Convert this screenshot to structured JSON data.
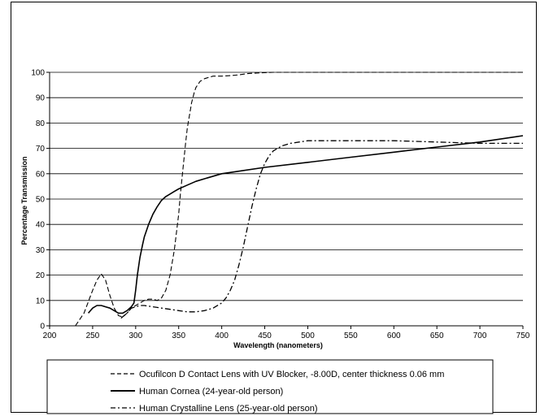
{
  "chart_data": {
    "type": "line",
    "title": "",
    "xlabel": "Wavelength (nanometers)",
    "ylabel": "Percentage Transmission",
    "xlim": [
      200,
      750
    ],
    "ylim": [
      0,
      100
    ],
    "x_ticks": [
      200,
      250,
      300,
      350,
      400,
      450,
      500,
      550,
      600,
      650,
      700,
      750
    ],
    "y_ticks": [
      0,
      10,
      20,
      30,
      40,
      50,
      60,
      70,
      80,
      90,
      100
    ],
    "grid": "horizontal",
    "legend": "bottom",
    "series": [
      {
        "name": "Ocufilcon D Contact Lens with UV Blocker, -8.00D, center thickness 0.06 mm",
        "style": "dashed",
        "x": [
          230,
          240,
          250,
          255,
          260,
          265,
          270,
          275,
          280,
          285,
          290,
          295,
          300,
          305,
          310,
          315,
          320,
          325,
          330,
          335,
          340,
          345,
          350,
          352,
          355,
          358,
          360,
          363,
          365,
          368,
          370,
          373,
          375,
          378,
          380,
          385,
          390,
          395,
          400,
          410,
          420,
          430,
          440,
          460,
          500,
          600,
          700,
          750
        ],
        "y": [
          0,
          5,
          14,
          18,
          20.5,
          18,
          12,
          7,
          4,
          3.5,
          5,
          7,
          8,
          9,
          10,
          10.5,
          10.5,
          10,
          11,
          14,
          20,
          30,
          44,
          52,
          62,
          72,
          78,
          84,
          88,
          92,
          94,
          95.5,
          96.5,
          97,
          97.5,
          98,
          98.5,
          98.5,
          98.5,
          98.7,
          99,
          99.5,
          99.7,
          100,
          100,
          100,
          100,
          100
        ]
      },
      {
        "name": "Human Cornea (24-year-old person)",
        "style": "solid",
        "x": [
          245,
          250,
          255,
          260,
          265,
          270,
          275,
          280,
          285,
          290,
          295,
          298,
          300,
          302,
          305,
          308,
          310,
          315,
          320,
          325,
          330,
          335,
          340,
          345,
          350,
          360,
          370,
          380,
          400,
          420,
          450,
          500,
          550,
          600,
          650,
          700,
          750
        ],
        "y": [
          5,
          7,
          8,
          8,
          7.5,
          7,
          6,
          5,
          5,
          6,
          7.5,
          9,
          14,
          20,
          27,
          32,
          35,
          40,
          44,
          47,
          49.5,
          51,
          52,
          53,
          54,
          55.5,
          57,
          58,
          60,
          61,
          62.5,
          64.5,
          66.5,
          68.5,
          70.5,
          72.5,
          75
        ]
      },
      {
        "name": "Human Crystalline Lens (25-year-old person)",
        "style": "dashdot",
        "x": [
          283,
          290,
          295,
          300,
          305,
          310,
          320,
          330,
          340,
          350,
          360,
          370,
          380,
          390,
          400,
          405,
          410,
          415,
          420,
          425,
          430,
          435,
          440,
          445,
          450,
          455,
          460,
          465,
          470,
          480,
          490,
          500,
          520,
          540,
          560,
          600,
          650,
          700,
          750
        ],
        "y": [
          3,
          5,
          7,
          7.5,
          8,
          8,
          7.5,
          7,
          6.5,
          6,
          5.5,
          5.5,
          6,
          7,
          9,
          11,
          14,
          18,
          24,
          31,
          39,
          47,
          54,
          60,
          64,
          67,
          69,
          70,
          71,
          72,
          72.5,
          73,
          73,
          73,
          73,
          73,
          72.5,
          72,
          72
        ]
      }
    ]
  }
}
